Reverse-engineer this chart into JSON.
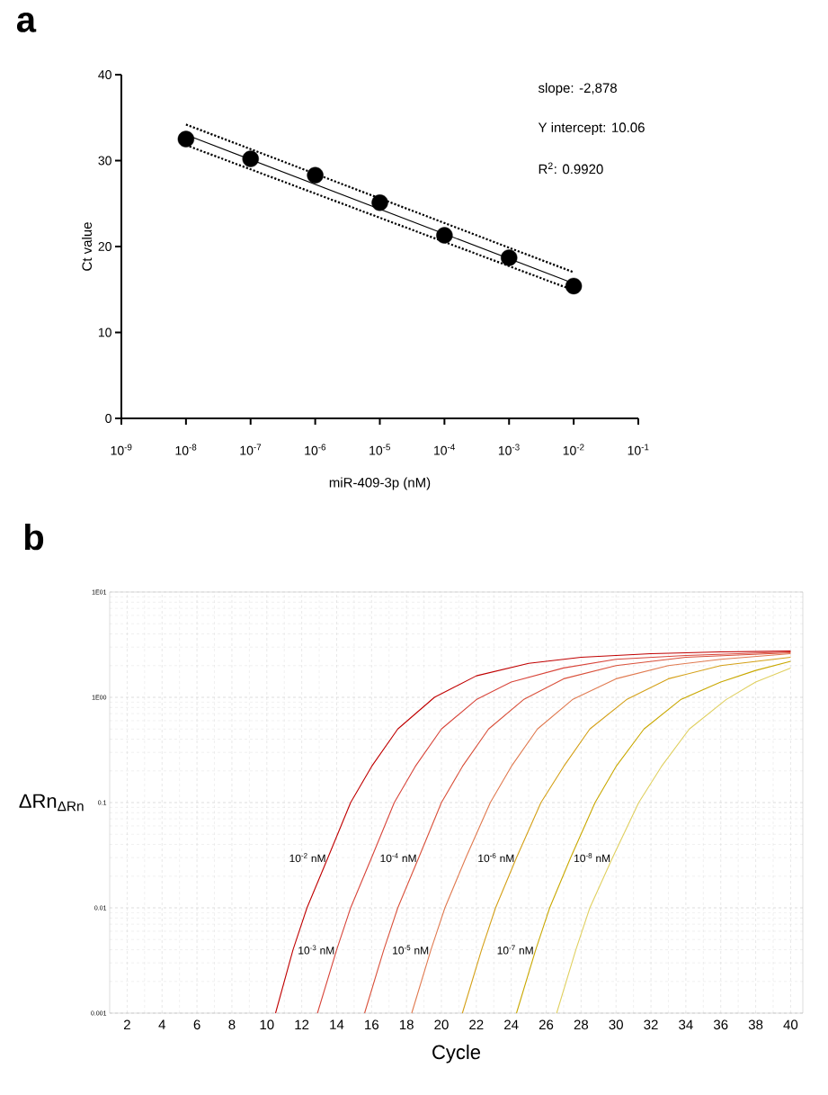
{
  "chart_data": [
    {
      "type": "scatter",
      "title": "a",
      "xlabel": "miR-409-3p (nM)",
      "ylabel": "Ct value",
      "log": "x",
      "grid": false,
      "xlim": [
        1e-09,
        0.1
      ],
      "xticks": [
        {
          "value": 1e-09,
          "label": "10$^{-9}$"
        },
        {
          "value": 1e-08,
          "label": "10$^{-8}$"
        },
        {
          "value": 1e-07,
          "label": "10$^{-7}$"
        },
        {
          "value": 1e-06,
          "label": "10$^{-6}$"
        },
        {
          "value": 1e-05,
          "label": "10$^{-5}$"
        },
        {
          "value": 0.0001,
          "label": "10$^{-4}$"
        },
        {
          "value": 0.001,
          "label": "10$^{-3}$"
        },
        {
          "value": 0.01,
          "label": "10$^{-2}$"
        },
        {
          "value": 0.1,
          "label": "10$^{-1}$"
        }
      ],
      "ylim": [
        0,
        40
      ],
      "yticks": [
        0,
        10,
        20,
        30,
        40
      ],
      "annotations": [
        "slope: -2,878",
        "Y intercept: 10.06",
        "R$^{2}$: 0.9920"
      ],
      "series": [
        {
          "type": "scatter",
          "marker": "circle",
          "color": "#000000",
          "x": [
            1e-08,
            1e-07,
            1e-06,
            1e-05,
            0.0001,
            0.001,
            0.01
          ],
          "values": [
            32.5,
            30.2,
            28.3,
            25.1,
            21.3,
            18.7,
            15.4
          ]
        },
        {
          "type": "line",
          "marker": "none",
          "color": "#000000",
          "line_style": "solid",
          "x": [
            1e-08,
            0.01
          ],
          "values": [
            33.0,
            15.7
          ]
        },
        {
          "type": "line",
          "marker": "none",
          "color": "#000000",
          "line_style": "dotted",
          "x": [
            1e-08,
            0.01
          ],
          "values": [
            34.2,
            17.0
          ]
        },
        {
          "type": "line",
          "marker": "none",
          "color": "#000000",
          "line_style": "dotted",
          "x": [
            1e-08,
            0.01
          ],
          "values": [
            31.8,
            14.9
          ]
        }
      ]
    },
    {
      "type": "line",
      "title": "b",
      "xlabel": "Cycle",
      "ylabel": "ΔRn$_{ΔRn}$",
      "log": "y",
      "grid": true,
      "xlim": [
        1,
        40.7
      ],
      "xticks": [
        2,
        4,
        6,
        8,
        10,
        12,
        14,
        16,
        18,
        20,
        22,
        24,
        26,
        28,
        30,
        32,
        34,
        36,
        38,
        40
      ],
      "ylim": [
        0.001,
        10
      ],
      "yticks": [
        0.001,
        0.01,
        0.1,
        {
          "value": 1,
          "label": "1E00"
        },
        {
          "value": 10,
          "label": "1E01"
        }
      ],
      "series": [
        {
          "name": "10$^{-2}$ nM",
          "color": "#c00000",
          "x": [
            10.5,
            11.5,
            12.3,
            13.5,
            14.8,
            16,
            17.5,
            19.6,
            22,
            25,
            28,
            32,
            36,
            40
          ],
          "values": [
            0.001,
            0.004,
            0.01,
            0.03,
            0.1,
            0.22,
            0.5,
            1.0,
            1.6,
            2.1,
            2.4,
            2.6,
            2.7,
            2.75
          ]
        },
        {
          "name": "10$^{-3}$ nM",
          "color": "#d8453a",
          "x": [
            12.9,
            14,
            14.8,
            16,
            17.3,
            18.5,
            20,
            22,
            24,
            27,
            30,
            34,
            40
          ],
          "values": [
            0.001,
            0.004,
            0.01,
            0.03,
            0.1,
            0.22,
            0.5,
            0.95,
            1.4,
            1.9,
            2.3,
            2.5,
            2.7
          ]
        },
        {
          "name": "10$^{-4}$ nM",
          "color": "#d9503a",
          "x": [
            15.6,
            16.7,
            17.5,
            18.7,
            20,
            21.2,
            22.7,
            24.7,
            27,
            30,
            34,
            40
          ],
          "values": [
            0.001,
            0.004,
            0.01,
            0.03,
            0.1,
            0.22,
            0.5,
            0.95,
            1.5,
            2.0,
            2.4,
            2.65
          ]
        },
        {
          "name": "10$^{-5}$ nM",
          "color": "#e07a50",
          "x": [
            18.3,
            19.4,
            20.2,
            21.4,
            22.8,
            24,
            25.5,
            27.5,
            30,
            33,
            36,
            40
          ],
          "values": [
            0.001,
            0.004,
            0.01,
            0.03,
            0.1,
            0.22,
            0.5,
            0.95,
            1.5,
            2.0,
            2.3,
            2.6
          ]
        },
        {
          "name": "10$^{-6}$ nM",
          "color": "#d4a017",
          "x": [
            21.2,
            22.3,
            23.1,
            24.3,
            25.7,
            27,
            28.5,
            30.6,
            33,
            36,
            40
          ],
          "values": [
            0.001,
            0.004,
            0.01,
            0.03,
            0.1,
            0.22,
            0.5,
            0.95,
            1.5,
            2.0,
            2.4
          ]
        },
        {
          "name": "10$^{-7}$ nM",
          "color": "#c9a800",
          "x": [
            24.3,
            25.4,
            26.2,
            27.4,
            28.8,
            30,
            31.6,
            33.7,
            36,
            38,
            40
          ],
          "values": [
            0.001,
            0.004,
            0.01,
            0.03,
            0.1,
            0.22,
            0.5,
            0.95,
            1.4,
            1.8,
            2.2
          ]
        },
        {
          "name": "10$^{-8}$ nM",
          "color": "#e0d060",
          "x": [
            26.6,
            27.7,
            28.5,
            29.8,
            31.3,
            32.6,
            34.2,
            36.3,
            38,
            40
          ],
          "values": [
            0.001,
            0.004,
            0.01,
            0.03,
            0.1,
            0.22,
            0.5,
            0.95,
            1.4,
            1.9
          ]
        }
      ]
    }
  ]
}
